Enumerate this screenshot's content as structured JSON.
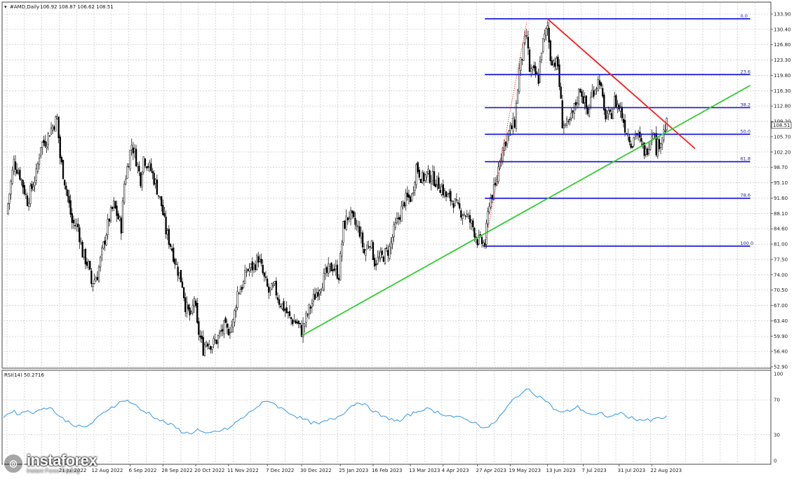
{
  "header": {
    "label": "AMD,Daily",
    "ohlc": "106.92 108.87 106.62 108.51"
  },
  "rsi_label": "RSI(14) 50.2716",
  "logo": {
    "name": "instaforex",
    "tagline": "Instant Forex Trading",
    "icon": "instaforex-logo-icon"
  },
  "colors": {
    "fib": "#0a0ad6",
    "trend_red": "#ff1a1a",
    "trend_green": "#33cc33",
    "rsi": "#3399e6",
    "grid": "#bdbdbd",
    "candle": "#000000"
  },
  "chart_data": [
    {
      "type": "candlestick",
      "symbol": "AMD",
      "timeframe": "Daily",
      "ylim": [
        52.9,
        135.0
      ],
      "y_ticks": [
        "133.90",
        "130.40",
        "126.80",
        "123.30",
        "119.80",
        "116.30",
        "112.80",
        "109.20",
        "105.70",
        "102.20",
        "98.70",
        "95.10",
        "91.60",
        "88.10",
        "84.60",
        "81.00",
        "77.50",
        "74.00",
        "70.50",
        "67.00",
        "63.40",
        "59.90",
        "56.40",
        "52.90"
      ],
      "x_ticks": [
        "21 Jul 2022",
        "12 Aug 2022",
        "6 Sep 2022",
        "28 Sep 2022",
        "20 Oct 2022",
        "11 Nov 2022",
        "7 Dec 2022",
        "30 Dec 2022",
        "25 Jan 2023",
        "16 Feb 2023",
        "13 Mar 2023",
        "4 Apr 2023",
        "27 Apr 2023",
        "19 May 2023",
        "13 Jun 2023",
        "7 Jul 2023",
        "31 Jul 2023",
        "22 Aug 2023"
      ],
      "current_price": "108.51",
      "close_path": [
        [
          "2022-06-15",
          88
        ],
        [
          "2022-06-20",
          100
        ],
        [
          "2022-06-24",
          97
        ],
        [
          "2022-06-29",
          91
        ],
        [
          "2022-07-05",
          97
        ],
        [
          "2022-07-08",
          104
        ],
        [
          "2022-07-12",
          105
        ],
        [
          "2022-07-14",
          107
        ],
        [
          "2022-07-19",
          110
        ],
        [
          "2022-07-21",
          101
        ],
        [
          "2022-07-26",
          92
        ],
        [
          "2022-07-29",
          86
        ],
        [
          "2022-08-02",
          85
        ],
        [
          "2022-08-05",
          79
        ],
        [
          "2022-08-09",
          76
        ],
        [
          "2022-08-11",
          72
        ],
        [
          "2022-08-15",
          74
        ],
        [
          "2022-08-18",
          79
        ],
        [
          "2022-08-23",
          87
        ],
        [
          "2022-08-26",
          90
        ],
        [
          "2022-08-31",
          85
        ],
        [
          "2022-09-02",
          95
        ],
        [
          "2022-09-07",
          104
        ],
        [
          "2022-09-09",
          102
        ],
        [
          "2022-09-13",
          96
        ],
        [
          "2022-09-15",
          101
        ],
        [
          "2022-09-20",
          98
        ],
        [
          "2022-09-23",
          95
        ],
        [
          "2022-09-27",
          90
        ],
        [
          "2022-09-30",
          84
        ],
        [
          "2022-10-04",
          80
        ],
        [
          "2022-10-07",
          76
        ],
        [
          "2022-10-11",
          72
        ],
        [
          "2022-10-13",
          67
        ],
        [
          "2022-10-17",
          64
        ],
        [
          "2022-10-19",
          69
        ],
        [
          "2022-10-21",
          62
        ],
        [
          "2022-10-25",
          57
        ],
        [
          "2022-10-27",
          59
        ],
        [
          "2022-10-31",
          58
        ],
        [
          "2022-11-03",
          59
        ],
        [
          "2022-11-08",
          62
        ],
        [
          "2022-11-10",
          61
        ],
        [
          "2022-11-14",
          63
        ],
        [
          "2022-11-17",
          70
        ],
        [
          "2022-11-21",
          72
        ],
        [
          "2022-11-23",
          75
        ],
        [
          "2022-11-28",
          76
        ],
        [
          "2022-12-01",
          78
        ],
        [
          "2022-12-05",
          73
        ],
        [
          "2022-12-08",
          70
        ],
        [
          "2022-12-12",
          71
        ],
        [
          "2022-12-15",
          68
        ],
        [
          "2022-12-19",
          66
        ],
        [
          "2022-12-22",
          64
        ],
        [
          "2022-12-27",
          63
        ],
        [
          "2022-12-30",
          61
        ],
        [
          "2023-01-04",
          66
        ],
        [
          "2023-01-09",
          70
        ],
        [
          "2023-01-12",
          72
        ],
        [
          "2023-01-17",
          75
        ],
        [
          "2023-01-20",
          76
        ],
        [
          "2023-01-24",
          74
        ],
        [
          "2023-01-27",
          85
        ],
        [
          "2023-01-31",
          88
        ],
        [
          "2023-02-03",
          86
        ],
        [
          "2023-02-07",
          84
        ],
        [
          "2023-02-10",
          79
        ],
        [
          "2023-02-14",
          82
        ],
        [
          "2023-02-17",
          77
        ],
        [
          "2023-02-22",
          78
        ],
        [
          "2023-02-27",
          80
        ],
        [
          "2023-03-02",
          84
        ],
        [
          "2023-03-06",
          88
        ],
        [
          "2023-03-09",
          91
        ],
        [
          "2023-03-14",
          92
        ],
        [
          "2023-03-17",
          99
        ],
        [
          "2023-03-21",
          96
        ],
        [
          "2023-03-24",
          97
        ],
        [
          "2023-03-29",
          96
        ],
        [
          "2023-04-03",
          94
        ],
        [
          "2023-04-06",
          92
        ],
        [
          "2023-04-11",
          91
        ],
        [
          "2023-04-14",
          89
        ],
        [
          "2023-04-19",
          88
        ],
        [
          "2023-04-24",
          85
        ],
        [
          "2023-04-27",
          82
        ],
        [
          "2023-05-02",
          81
        ],
        [
          "2023-05-05",
          91
        ],
        [
          "2023-05-09",
          94
        ],
        [
          "2023-05-12",
          101
        ],
        [
          "2023-05-17",
          106
        ],
        [
          "2023-05-22",
          109
        ],
        [
          "2023-05-25",
          121
        ],
        [
          "2023-05-30",
          129
        ],
        [
          "2023-06-01",
          121
        ],
        [
          "2023-06-05",
          120
        ],
        [
          "2023-06-07",
          119
        ],
        [
          "2023-06-09",
          126
        ],
        [
          "2023-06-13",
          131
        ],
        [
          "2023-06-15",
          124
        ],
        [
          "2023-06-20",
          122
        ],
        [
          "2023-06-23",
          109
        ],
        [
          "2023-06-27",
          108
        ],
        [
          "2023-06-30",
          111
        ],
        [
          "2023-07-05",
          117
        ],
        [
          "2023-07-10",
          111
        ],
        [
          "2023-07-13",
          116
        ],
        [
          "2023-07-18",
          119
        ],
        [
          "2023-07-21",
          111
        ],
        [
          "2023-07-25",
          110
        ],
        [
          "2023-07-28",
          114
        ],
        [
          "2023-08-01",
          112
        ],
        [
          "2023-08-04",
          108
        ],
        [
          "2023-08-09",
          104
        ],
        [
          "2023-08-11",
          107
        ],
        [
          "2023-08-16",
          103
        ],
        [
          "2023-08-18",
          102
        ],
        [
          "2023-08-23",
          108
        ],
        [
          "2023-08-25",
          103
        ],
        [
          "2023-08-29",
          106
        ],
        [
          "2023-09-01",
          108.51
        ]
      ]
    },
    {
      "type": "horizontal-levels",
      "name": "Fibonacci retracement",
      "levels": [
        {
          "label": "0.0",
          "price": 132.8
        },
        {
          "label": "23.6",
          "price": 120.0
        },
        {
          "label": "38.2",
          "price": 112.4
        },
        {
          "label": "50.0",
          "price": 106.3
        },
        {
          "label": "61.8",
          "price": 100.0
        },
        {
          "label": "78.6",
          "price": 91.6
        },
        {
          "label": "100.0",
          "price": 80.6
        }
      ],
      "start_date": "2023-05-02",
      "end_date": "2023-10-27"
    },
    {
      "type": "trendlines",
      "lines": [
        {
          "color": "red",
          "from": [
            "2023-06-13",
            132.8
          ],
          "to": [
            "2023-09-20",
            103.0
          ]
        },
        {
          "color": "green",
          "from": [
            "2022-12-30",
            60.0
          ],
          "to": [
            "2023-10-27",
            117.5
          ]
        },
        {
          "color": "red-dotted",
          "from": [
            "2023-05-02",
            80.6
          ],
          "to": [
            "2023-05-30",
            132.0
          ]
        }
      ]
    },
    {
      "type": "line",
      "name": "RSI(14)",
      "ylim": [
        0,
        100
      ],
      "y_ticks": [
        "100",
        "70",
        "30",
        "0"
      ],
      "last_value": 50.2716,
      "values_approx": [
        50,
        57,
        54,
        58,
        55,
        62,
        60,
        50,
        45,
        40,
        38,
        44,
        52,
        60,
        65,
        70,
        66,
        58,
        55,
        48,
        44,
        40,
        34,
        31,
        36,
        30,
        33,
        35,
        38,
        46,
        52,
        60,
        66,
        69,
        62,
        57,
        52,
        48,
        44,
        42,
        46,
        49,
        55,
        63,
        68,
        62,
        56,
        50,
        48,
        45,
        52,
        56,
        60,
        58,
        55,
        52,
        50,
        48,
        45,
        40,
        38,
        47,
        58,
        70,
        78,
        82,
        75,
        70,
        60,
        55,
        58,
        62,
        56,
        52,
        54,
        50,
        55,
        52,
        48,
        47,
        46,
        49,
        50
      ]
    }
  ]
}
